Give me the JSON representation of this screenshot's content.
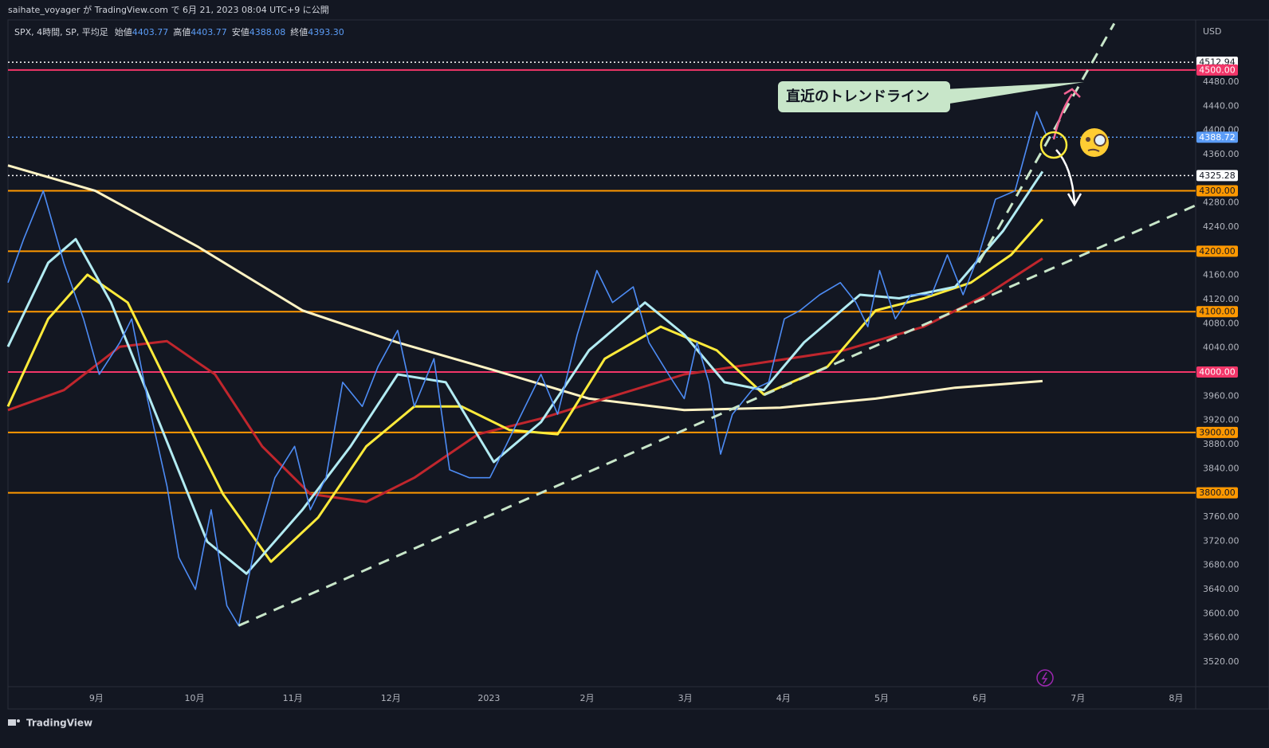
{
  "chart_data": {
    "type": "line",
    "header": "saihate_voyager が TradingView.com で 6月 21, 2023 08:04 UTC+9 に公開",
    "symbol": "SPX, 4時間, SP, 平均足",
    "ohlc": [
      {
        "label": "始値",
        "value": "4403.77"
      },
      {
        "label": "高値",
        "value": "4403.77"
      },
      {
        "label": "安値",
        "value": "4388.08"
      },
      {
        "label": "終値",
        "value": "4393.30"
      }
    ],
    "currency": "USD",
    "annotation": "直近のトレンドライン",
    "brand": "TradingView",
    "xlim": [
      -0.9,
      11.2
    ],
    "ylim": [
      3479,
      4583
    ],
    "xticks": [
      {
        "value": 0,
        "label": "9月"
      },
      {
        "value": 1,
        "label": "10月"
      },
      {
        "value": 2,
        "label": "11月"
      },
      {
        "value": 3,
        "label": "12月"
      },
      {
        "value": 4,
        "label": "2023"
      },
      {
        "value": 5,
        "label": "2月"
      },
      {
        "value": 6,
        "label": "3月"
      },
      {
        "value": 7,
        "label": "4月"
      },
      {
        "value": 8,
        "label": "5月"
      },
      {
        "value": 9,
        "label": "6月"
      },
      {
        "value": 10,
        "label": "7月"
      },
      {
        "value": 11,
        "label": "8月"
      }
    ],
    "yticks": [
      {
        "value": 3520,
        "label": "3520.00"
      },
      {
        "value": 3560,
        "label": "3560.00"
      },
      {
        "value": 3600,
        "label": "3600.00"
      },
      {
        "value": 3640,
        "label": "3640.00"
      },
      {
        "value": 3680,
        "label": "3680.00"
      },
      {
        "value": 3720,
        "label": "3720.00"
      },
      {
        "value": 3760,
        "label": "3760.00"
      },
      {
        "value": 3840,
        "label": "3840.00"
      },
      {
        "value": 3880,
        "label": "3880.00"
      },
      {
        "value": 3920,
        "label": "3920.00"
      },
      {
        "value": 3960,
        "label": "3960.00"
      },
      {
        "value": 4040,
        "label": "4040.00"
      },
      {
        "value": 4080,
        "label": "4080.00"
      },
      {
        "value": 4120,
        "label": "4120.00"
      },
      {
        "value": 4160,
        "label": "4160.00"
      },
      {
        "value": 4240,
        "label": "4240.00"
      },
      {
        "value": 4280,
        "label": "4280.00"
      },
      {
        "value": 4360,
        "label": "4360.00"
      },
      {
        "value": 4400,
        "label": "4400.00"
      },
      {
        "value": 4440,
        "label": "4440.00"
      },
      {
        "value": 4480,
        "label": "4480.00"
      }
    ],
    "levels": [
      {
        "value": 4512.94,
        "label": "4512.94",
        "color": "#ffffff",
        "text_color": "#131722",
        "style": "dotted"
      },
      {
        "value": 4500,
        "label": "4500.00",
        "color": "#f23669",
        "text_color": "#ffffff",
        "style": "solid"
      },
      {
        "value": 4388.72,
        "label": "4388.72",
        "color": "#5b9cf6",
        "text_color": "#ffffff",
        "style": "dotted"
      },
      {
        "value": 4325.28,
        "label": "4325.28",
        "color": "#ffffff",
        "text_color": "#131722",
        "style": "dotted"
      },
      {
        "value": 4300,
        "label": "4300.00",
        "color": "#ff9800",
        "text_color": "#131722",
        "style": "solid"
      },
      {
        "value": 4200,
        "label": "4200.00",
        "color": "#ff9800",
        "text_color": "#131722",
        "style": "solid"
      },
      {
        "value": 4100,
        "label": "4100.00",
        "color": "#ff9800",
        "text_color": "#131722",
        "style": "solid"
      },
      {
        "value": 4000,
        "label": "4000.00",
        "color": "#f23669",
        "text_color": "#ffffff",
        "style": "solid"
      },
      {
        "value": 3900,
        "label": "3900.00",
        "color": "#ff9800",
        "text_color": "#131722",
        "style": "solid"
      },
      {
        "value": 3800,
        "label": "3800.00",
        "color": "#ff9800",
        "text_color": "#131722",
        "style": "solid"
      }
    ],
    "trendlines": [
      {
        "x": [
          1.45,
          11.2
        ],
        "values": [
          3580,
          4276
        ],
        "color": "#c8e6c9"
      },
      {
        "x": [
          8.99,
          10.37
        ],
        "values": [
          4181,
          4577
        ],
        "color": "#c8e6c9"
      }
    ],
    "series": [
      {
        "color": "#fff3c4",
        "width": 3,
        "x": [
          -0.9,
          -0.01,
          1.04,
          2.1,
          3.07,
          4.05,
          5.02,
          5.99,
          6.97,
          7.94,
          8.75,
          9.64
        ],
        "values": [
          4342,
          4300,
          4207,
          4102,
          4049,
          4003,
          3956,
          3937,
          3941,
          3956,
          3974,
          3985
        ]
      },
      {
        "color": "#c0262d",
        "width": 3,
        "x": [
          -0.9,
          -0.33,
          0.24,
          0.72,
          1.21,
          1.69,
          2.18,
          2.75,
          3.24,
          3.89,
          4.53,
          5.18,
          5.99,
          6.8,
          7.62,
          8.43,
          9.07,
          9.64
        ],
        "values": [
          3937,
          3970,
          4042,
          4051,
          3996,
          3877,
          3798,
          3785,
          3825,
          3897,
          3923,
          3956,
          3996,
          4016,
          4036,
          4075,
          4128,
          4188
        ]
      },
      {
        "color": "#ffeb3b",
        "width": 3,
        "x": [
          -0.9,
          -0.49,
          -0.09,
          0.32,
          0.8,
          1.29,
          1.78,
          2.26,
          2.75,
          3.24,
          3.72,
          4.21,
          4.7,
          5.18,
          5.75,
          6.32,
          6.8,
          7.45,
          7.94,
          8.43,
          8.91,
          9.32,
          9.64
        ],
        "values": [
          3943,
          4088,
          4161,
          4115,
          3956,
          3798,
          3686,
          3759,
          3877,
          3943,
          3943,
          3904,
          3897,
          4022,
          4075,
          4036,
          3963,
          4009,
          4102,
          4122,
          4148,
          4194,
          4253
        ]
      },
      {
        "color": "#b2ebf2",
        "width": 3,
        "x": [
          -0.9,
          -0.49,
          -0.21,
          0.15,
          0.64,
          1.13,
          1.53,
          2.1,
          2.59,
          3.07,
          3.56,
          4.05,
          4.53,
          5.02,
          5.59,
          5.99,
          6.4,
          6.8,
          7.21,
          7.78,
          8.18,
          8.75,
          9.24,
          9.64
        ],
        "values": [
          4042,
          4181,
          4220,
          4115,
          3917,
          3719,
          3666,
          3772,
          3877,
          3996,
          3983,
          3851,
          3917,
          4036,
          4115,
          4062,
          3983,
          3970,
          4049,
          4128,
          4122,
          4141,
          4234,
          4332
        ]
      },
      {
        "color": "#4d8cf5",
        "width": 1.6,
        "x": [
          -0.9,
          -0.74,
          -0.54,
          -0.33,
          -0.13,
          0.03,
          0.24,
          0.36,
          0.52,
          0.72,
          0.84,
          1.01,
          1.17,
          1.33,
          1.45,
          1.61,
          1.82,
          2.02,
          2.18,
          2.34,
          2.51,
          2.71,
          2.87,
          3.07,
          3.24,
          3.44,
          3.6,
          3.8,
          4.01,
          4.17,
          4.33,
          4.53,
          4.7,
          4.9,
          5.1,
          5.26,
          5.47,
          5.63,
          5.83,
          5.99,
          6.12,
          6.24,
          6.36,
          6.48,
          6.68,
          6.85,
          7.01,
          7.17,
          7.37,
          7.58,
          7.74,
          7.86,
          7.98,
          8.14,
          8.3,
          8.51,
          8.67,
          8.83,
          8.99,
          9.16,
          9.36,
          9.48,
          9.58,
          9.68
        ],
        "values": [
          4148,
          4220,
          4300,
          4180,
          4088,
          3996,
          4049,
          4088,
          3956,
          3811,
          3693,
          3640,
          3772,
          3613,
          3580,
          3706,
          3825,
          3877,
          3772,
          3825,
          3983,
          3943,
          4009,
          4069,
          3943,
          4022,
          3838,
          3825,
          3825,
          3877,
          3930,
          3996,
          3930,
          4062,
          4168,
          4115,
          4141,
          4049,
          3996,
          3956,
          4049,
          3983,
          3864,
          3930,
          3970,
          3983,
          4088,
          4102,
          4128,
          4148,
          4115,
          4075,
          4168,
          4088,
          4128,
          4128,
          4194,
          4128,
          4194,
          4286,
          4300,
          4372,
          4431,
          4392
        ]
      }
    ]
  }
}
